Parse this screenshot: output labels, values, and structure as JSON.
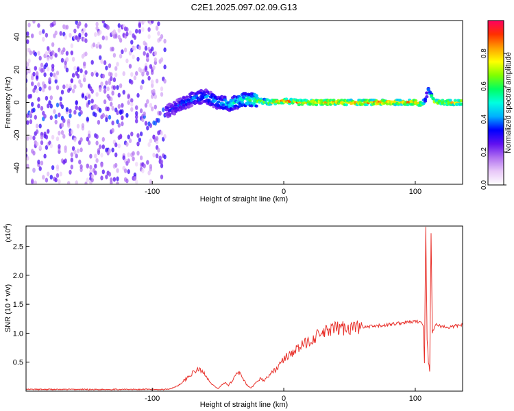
{
  "chart_data": [
    {
      "type": "heatmap",
      "title": "C2E1.2025.097.02.09.G13",
      "xlabel": "Height of straight line (km)",
      "ylabel": "Frequency (Hz)",
      "xlim": [
        -196,
        136
      ],
      "ylim": [
        -50,
        50
      ],
      "xticks": [
        -100,
        0,
        100
      ],
      "xtick_labels": [
        "-100",
        "0",
        "100"
      ],
      "yticks": [
        -40,
        -20,
        0,
        20,
        40
      ],
      "ytick_labels": [
        "-40",
        "-20",
        "0",
        "20",
        "40"
      ],
      "colorbar": {
        "label": "Normalized spectral amplitude",
        "range": [
          0,
          1
        ],
        "ticks": [
          0.0,
          0.2,
          0.4,
          0.6,
          0.8
        ],
        "tick_labels": [
          "0.0",
          "0.2",
          "0.4",
          "0.6",
          "0.8"
        ],
        "colors": [
          "#ffffff",
          "#e8c8f8",
          "#b070f0",
          "#6010f0",
          "#0000ff",
          "#00b0ff",
          "#00ffe0",
          "#00ff60",
          "#80ff00",
          "#ffff00",
          "#ffa000",
          "#ff3000",
          "#ff0060"
        ]
      },
      "ridge": {
        "x": [
          -196,
          -180,
          -160,
          -140,
          -120,
          -100,
          -90,
          -80,
          -70,
          -60,
          -50,
          -40,
          -30,
          -20,
          -10,
          0,
          10,
          20,
          40,
          60,
          80,
          100,
          105,
          108,
          110,
          115,
          136
        ],
        "y": [
          -8,
          -6,
          -7,
          -5,
          -8,
          -8,
          -6,
          -2,
          2,
          4,
          0,
          -1,
          2,
          1,
          0,
          1,
          0,
          0,
          0,
          0,
          0,
          0,
          -1,
          2,
          8,
          0,
          0
        ],
        "amplitude": [
          0.2,
          0.2,
          0.2,
          0.2,
          0.25,
          0.3,
          0.35,
          0.4,
          0.45,
          0.45,
          0.5,
          0.55,
          0.6,
          0.75,
          0.85,
          0.9,
          0.95,
          0.95,
          0.95,
          0.95,
          0.95,
          0.95,
          0.8,
          0.5,
          0.45,
          0.8,
          0.95
        ]
      },
      "grid": false
    },
    {
      "type": "line",
      "xlabel": "Height of straight line (km)",
      "ylabel": "SNR (10 * v/v)",
      "y_multiplier": "(x10",
      "y_multiplier_exp": "4",
      "y_multiplier_close": ")",
      "xlim": [
        -196,
        136
      ],
      "ylim": [
        0,
        2.85
      ],
      "xticks": [
        -100,
        0,
        100
      ],
      "xtick_labels": [
        "-100",
        "0",
        "100"
      ],
      "yticks": [
        0.5,
        1.0,
        1.5,
        2.0,
        2.5
      ],
      "ytick_labels": [
        "0.5",
        "1.0",
        "1.5",
        "2.0",
        "2.5"
      ],
      "color": "#e8302a",
      "series": [
        {
          "x": [
            -196,
            -160,
            -120,
            -90,
            -85,
            -80,
            -75,
            -70,
            -65,
            -60,
            -55,
            -50,
            -45,
            -42,
            -38,
            -35,
            -32,
            -28,
            -25,
            -22,
            -18,
            -15,
            -10,
            -5,
            0,
            5,
            10,
            15,
            20,
            25,
            30,
            35,
            40,
            50,
            60,
            70,
            80,
            90,
            100,
            104,
            106,
            107,
            108,
            109,
            110,
            111,
            112,
            113,
            115,
            120,
            125,
            130,
            136
          ],
          "y": [
            0.03,
            0.03,
            0.03,
            0.03,
            0.05,
            0.1,
            0.2,
            0.3,
            0.38,
            0.3,
            0.12,
            0.04,
            0.15,
            0.1,
            0.22,
            0.35,
            0.25,
            0.1,
            0.05,
            0.12,
            0.22,
            0.18,
            0.3,
            0.4,
            0.55,
            0.65,
            0.72,
            0.8,
            0.88,
            0.95,
            1.0,
            1.05,
            1.08,
            1.1,
            1.1,
            1.12,
            1.15,
            1.18,
            1.2,
            1.2,
            1.15,
            0.5,
            2.85,
            0.9,
            0.5,
            0.35,
            2.75,
            1.0,
            1.15,
            1.12,
            1.1,
            1.12,
            1.15
          ]
        }
      ],
      "grid": false
    }
  ]
}
